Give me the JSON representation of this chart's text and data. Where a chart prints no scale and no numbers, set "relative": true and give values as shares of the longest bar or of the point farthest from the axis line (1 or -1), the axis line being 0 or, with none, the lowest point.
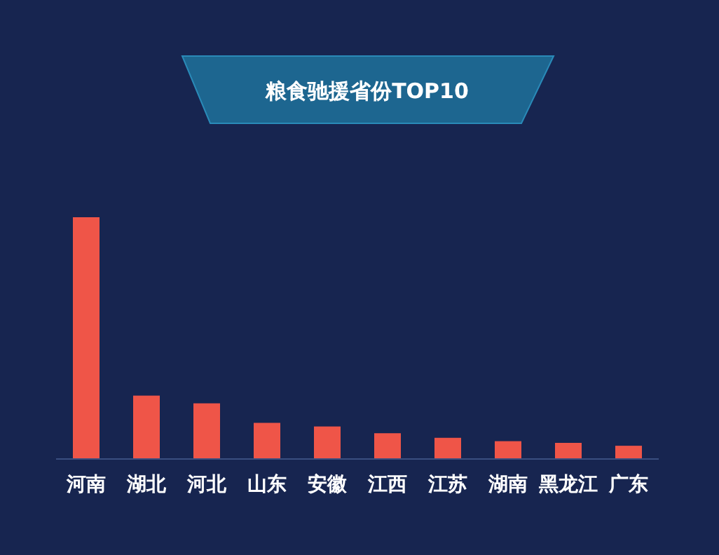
{
  "chart_data": {
    "type": "bar",
    "title": "粮食驰援省份TOP10",
    "relative": true,
    "categories": [
      "河南",
      "湖北",
      "河北",
      "山东",
      "安徽",
      "江西",
      "江苏",
      "湖南",
      "黑龙江",
      "广东"
    ],
    "values": [
      1,
      0.26,
      0.228,
      0.147,
      0.132,
      0.104,
      0.085,
      0.071,
      0.064,
      0.052
    ],
    "color": "#ef5548"
  }
}
